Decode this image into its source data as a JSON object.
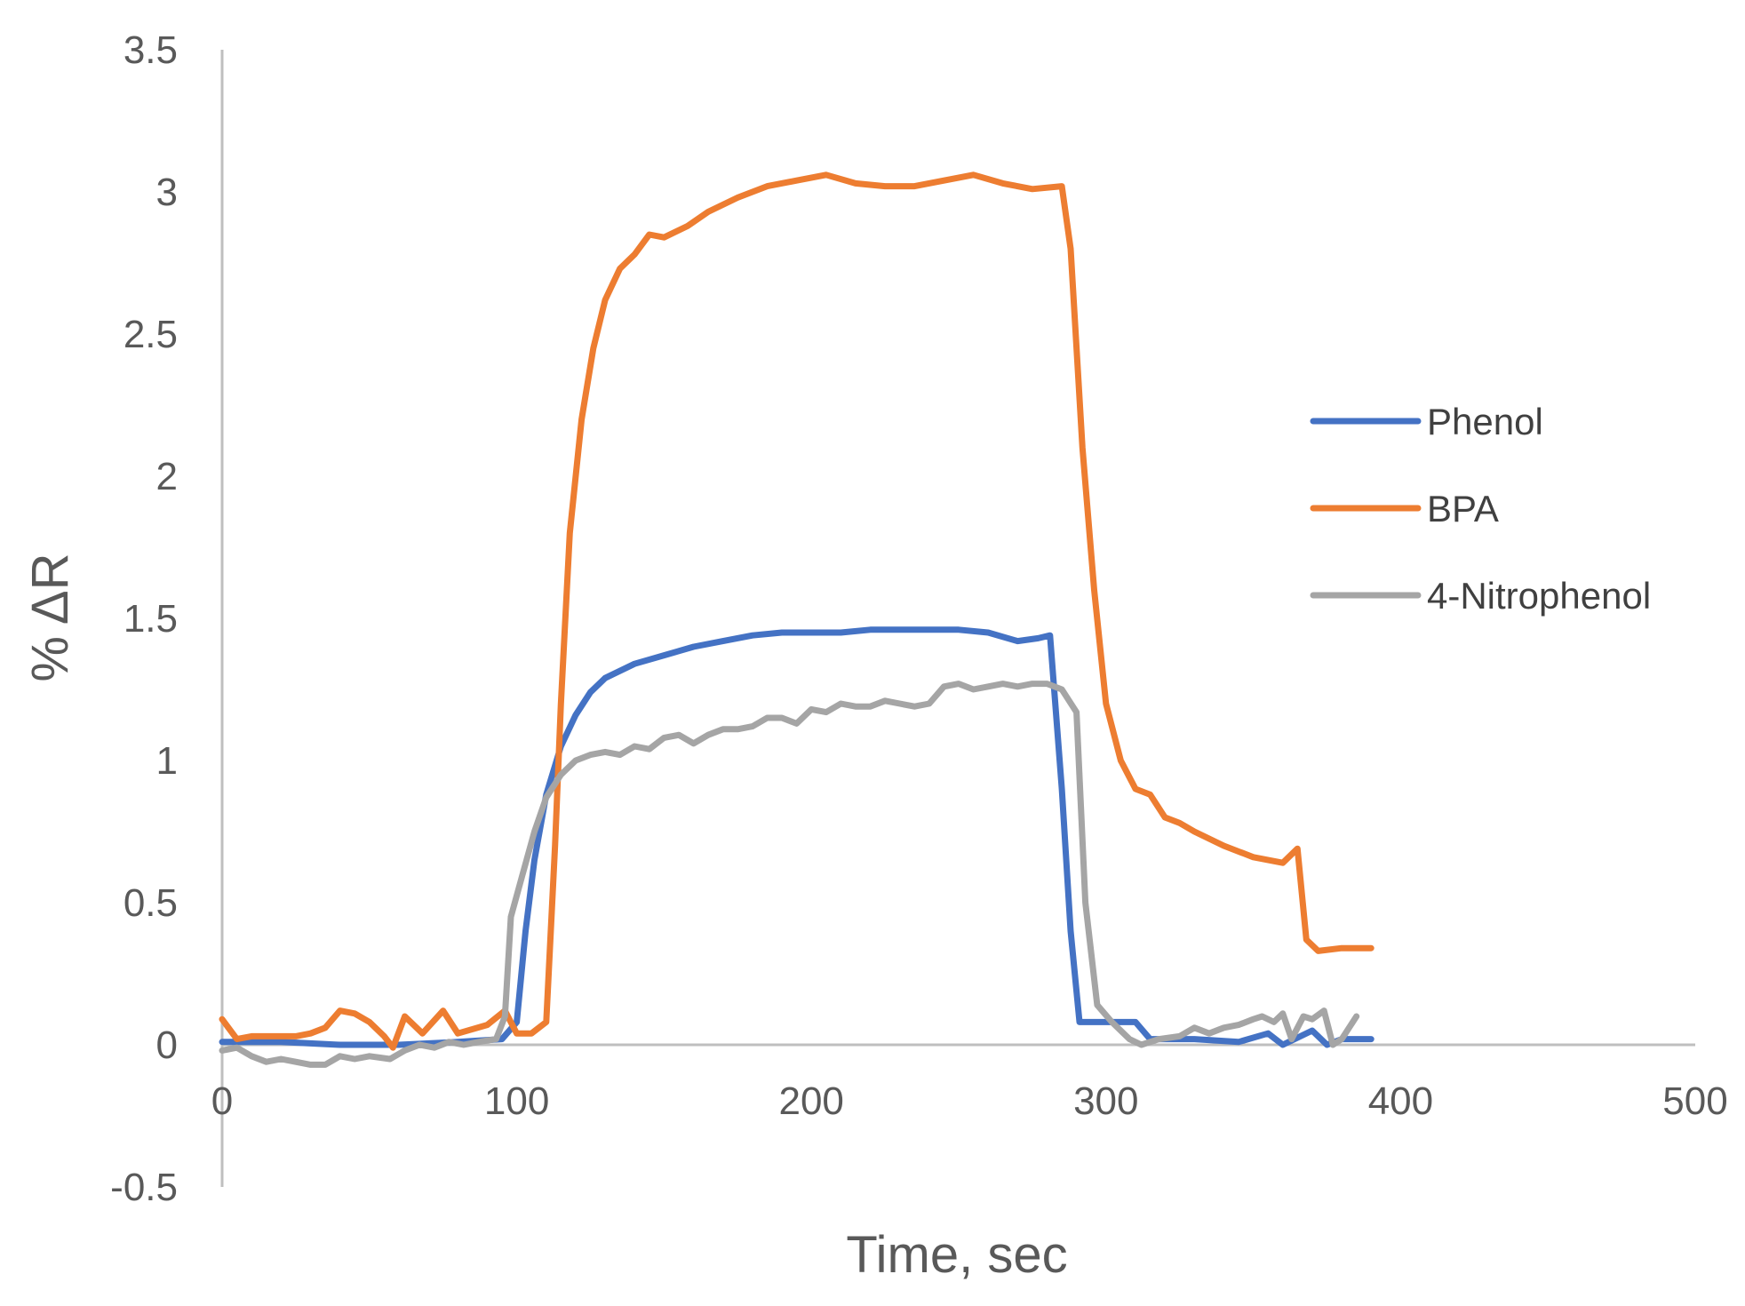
{
  "chart_data": {
    "type": "line",
    "title": "",
    "xlabel": "Time, sec",
    "ylabel": "% ΔR",
    "xlim": [
      0,
      500
    ],
    "ylim": [
      -0.5,
      3.5
    ],
    "x_ticks": [
      "0",
      "100",
      "200",
      "300",
      "400",
      "500"
    ],
    "y_ticks": [
      "-0.5",
      "0",
      "0.5",
      "1",
      "1.5",
      "2",
      "2.5",
      "3",
      "3.5"
    ],
    "grid": false,
    "legend_position": "right",
    "series": [
      {
        "name": "Phenol",
        "color": "#4472C4",
        "points": [
          [
            0,
            0.01
          ],
          [
            20,
            0.01
          ],
          [
            40,
            0.0
          ],
          [
            60,
            0.0
          ],
          [
            80,
            0.01
          ],
          [
            95,
            0.02
          ],
          [
            100,
            0.08
          ],
          [
            103,
            0.4
          ],
          [
            106,
            0.65
          ],
          [
            110,
            0.88
          ],
          [
            115,
            1.05
          ],
          [
            120,
            1.16
          ],
          [
            125,
            1.24
          ],
          [
            130,
            1.29
          ],
          [
            140,
            1.34
          ],
          [
            150,
            1.37
          ],
          [
            160,
            1.4
          ],
          [
            170,
            1.42
          ],
          [
            180,
            1.44
          ],
          [
            190,
            1.45
          ],
          [
            200,
            1.45
          ],
          [
            210,
            1.45
          ],
          [
            220,
            1.46
          ],
          [
            230,
            1.46
          ],
          [
            240,
            1.46
          ],
          [
            250,
            1.46
          ],
          [
            260,
            1.45
          ],
          [
            270,
            1.42
          ],
          [
            277,
            1.43
          ],
          [
            281,
            1.44
          ],
          [
            285,
            0.9
          ],
          [
            288,
            0.4
          ],
          [
            291,
            0.08
          ],
          [
            300,
            0.08
          ],
          [
            310,
            0.08
          ],
          [
            315,
            0.02
          ],
          [
            330,
            0.02
          ],
          [
            345,
            0.01
          ],
          [
            355,
            0.04
          ],
          [
            360,
            0.0
          ],
          [
            370,
            0.05
          ],
          [
            375,
            0.0
          ],
          [
            380,
            0.02
          ],
          [
            390,
            0.02
          ]
        ]
      },
      {
        "name": "BPA",
        "color": "#ED7D31",
        "points": [
          [
            0,
            0.09
          ],
          [
            5,
            0.02
          ],
          [
            10,
            0.03
          ],
          [
            25,
            0.03
          ],
          [
            30,
            0.04
          ],
          [
            35,
            0.06
          ],
          [
            40,
            0.12
          ],
          [
            45,
            0.11
          ],
          [
            50,
            0.08
          ],
          [
            55,
            0.03
          ],
          [
            58,
            -0.01
          ],
          [
            62,
            0.1
          ],
          [
            68,
            0.04
          ],
          [
            75,
            0.12
          ],
          [
            80,
            0.04
          ],
          [
            90,
            0.07
          ],
          [
            96,
            0.12
          ],
          [
            100,
            0.04
          ],
          [
            105,
            0.04
          ],
          [
            110,
            0.08
          ],
          [
            113,
            0.7
          ],
          [
            115,
            1.2
          ],
          [
            118,
            1.8
          ],
          [
            122,
            2.2
          ],
          [
            126,
            2.45
          ],
          [
            130,
            2.62
          ],
          [
            135,
            2.73
          ],
          [
            140,
            2.78
          ],
          [
            145,
            2.85
          ],
          [
            150,
            2.84
          ],
          [
            158,
            2.88
          ],
          [
            165,
            2.93
          ],
          [
            175,
            2.98
          ],
          [
            185,
            3.02
          ],
          [
            195,
            3.04
          ],
          [
            205,
            3.06
          ],
          [
            215,
            3.03
          ],
          [
            225,
            3.02
          ],
          [
            235,
            3.02
          ],
          [
            245,
            3.04
          ],
          [
            255,
            3.06
          ],
          [
            265,
            3.03
          ],
          [
            275,
            3.01
          ],
          [
            285,
            3.02
          ],
          [
            288,
            2.8
          ],
          [
            292,
            2.1
          ],
          [
            296,
            1.6
          ],
          [
            300,
            1.2
          ],
          [
            305,
            1.0
          ],
          [
            310,
            0.9
          ],
          [
            315,
            0.88
          ],
          [
            320,
            0.8
          ],
          [
            325,
            0.78
          ],
          [
            330,
            0.75
          ],
          [
            340,
            0.7
          ],
          [
            350,
            0.66
          ],
          [
            360,
            0.64
          ],
          [
            365,
            0.69
          ],
          [
            368,
            0.37
          ],
          [
            372,
            0.33
          ],
          [
            380,
            0.34
          ],
          [
            390,
            0.34
          ]
        ]
      },
      {
        "name": "4-Nitrophenol",
        "color": "#A5A5A5",
        "points": [
          [
            0,
            -0.02
          ],
          [
            5,
            -0.01
          ],
          [
            10,
            -0.04
          ],
          [
            15,
            -0.06
          ],
          [
            20,
            -0.05
          ],
          [
            25,
            -0.06
          ],
          [
            30,
            -0.07
          ],
          [
            35,
            -0.07
          ],
          [
            40,
            -0.04
          ],
          [
            45,
            -0.05
          ],
          [
            50,
            -0.04
          ],
          [
            57,
            -0.05
          ],
          [
            62,
            -0.02
          ],
          [
            67,
            0.0
          ],
          [
            72,
            -0.01
          ],
          [
            77,
            0.01
          ],
          [
            82,
            0.0
          ],
          [
            87,
            0.01
          ],
          [
            93,
            0.02
          ],
          [
            96,
            0.1
          ],
          [
            98,
            0.45
          ],
          [
            102,
            0.6
          ],
          [
            106,
            0.75
          ],
          [
            110,
            0.87
          ],
          [
            115,
            0.95
          ],
          [
            120,
            1.0
          ],
          [
            125,
            1.02
          ],
          [
            130,
            1.03
          ],
          [
            135,
            1.02
          ],
          [
            140,
            1.05
          ],
          [
            145,
            1.04
          ],
          [
            150,
            1.08
          ],
          [
            155,
            1.09
          ],
          [
            160,
            1.06
          ],
          [
            165,
            1.09
          ],
          [
            170,
            1.11
          ],
          [
            175,
            1.11
          ],
          [
            180,
            1.12
          ],
          [
            185,
            1.15
          ],
          [
            190,
            1.15
          ],
          [
            195,
            1.13
          ],
          [
            200,
            1.18
          ],
          [
            205,
            1.17
          ],
          [
            210,
            1.2
          ],
          [
            215,
            1.19
          ],
          [
            220,
            1.19
          ],
          [
            225,
            1.21
          ],
          [
            230,
            1.2
          ],
          [
            235,
            1.19
          ],
          [
            240,
            1.2
          ],
          [
            245,
            1.26
          ],
          [
            250,
            1.27
          ],
          [
            255,
            1.25
          ],
          [
            260,
            1.26
          ],
          [
            265,
            1.27
          ],
          [
            270,
            1.26
          ],
          [
            275,
            1.27
          ],
          [
            280,
            1.27
          ],
          [
            285,
            1.25
          ],
          [
            290,
            1.17
          ],
          [
            293,
            0.5
          ],
          [
            297,
            0.14
          ],
          [
            302,
            0.08
          ],
          [
            308,
            0.02
          ],
          [
            312,
            0.0
          ],
          [
            318,
            0.02
          ],
          [
            325,
            0.03
          ],
          [
            330,
            0.06
          ],
          [
            335,
            0.04
          ],
          [
            340,
            0.06
          ],
          [
            345,
            0.07
          ],
          [
            350,
            0.09
          ],
          [
            353,
            0.1
          ],
          [
            357,
            0.08
          ],
          [
            360,
            0.11
          ],
          [
            363,
            0.02
          ],
          [
            367,
            0.1
          ],
          [
            370,
            0.09
          ],
          [
            374,
            0.12
          ],
          [
            377,
            0.0
          ],
          [
            380,
            0.02
          ],
          [
            385,
            0.1
          ]
        ]
      }
    ]
  }
}
